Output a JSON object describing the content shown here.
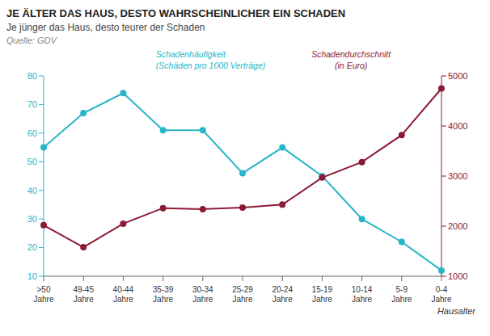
{
  "chart_data": {
    "type": "line",
    "title": "JE ÄLTER DAS HAUS, DESTO WAHRSCHEINLICHER EIN SCHADEN",
    "subtitle": "Je jünger das Haus, desto teurer der Schaden",
    "annotations": [
      "Quelle: GDV"
    ],
    "x_label": "Hausalter",
    "categories": [
      ">50\nJahre",
      "49-45\nJahre",
      "40-44\nJahre",
      "35-39\nJahre",
      "30-34\nJahre",
      "25-29\nJahre",
      "20-24\nJahre",
      "15-19\nJahre",
      "10-14\nJahre",
      "5-9\nJahre",
      "0-4\nJahre"
    ],
    "series": [
      {
        "name": "Schadenhäufigkeit\n(Schäden pro 1000 Verträge)",
        "color": "#29b5c8",
        "values": [
          55,
          67,
          74,
          61,
          61,
          46,
          55,
          45,
          30,
          22,
          12
        ],
        "axis": "y"
      },
      {
        "name": "Schadendurchschnitt\n(in Euro)",
        "color": "#8b1a35",
        "values": [
          2020,
          1580,
          2050,
          2360,
          2340,
          2370,
          2430,
          2970,
          3280,
          3820,
          4750
        ],
        "axis": "y2"
      }
    ],
    "ylim": [
      10,
      80
    ],
    "yticks": [
      10,
      20,
      30,
      40,
      50,
      60,
      70,
      80
    ],
    "y2lim": [
      1000,
      5000
    ],
    "y2ticks": [
      1000,
      2000,
      3000,
      4000,
      5000
    ],
    "grid": false
  }
}
